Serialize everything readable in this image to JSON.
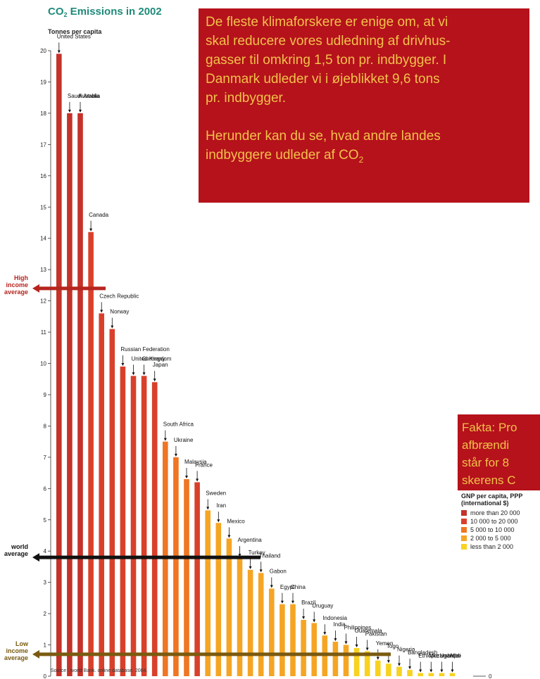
{
  "title": {
    "main": "CO",
    "sub": "2",
    "rest": " Emissions in 2002"
  },
  "ylabel": "Tonnes per capita",
  "source": "Source : world Bank. online database. 2004.",
  "info_box": {
    "lines": [
      "De fleste klimaforskere er enige om, at vi",
      "skal reducere vores udledning af drivhus-",
      "gasser til omkring 1,5 ton pr. indbygger. I",
      "Danmark udleder vi i øjeblikket 9,6 tons",
      "pr. indbygger."
    ],
    "line2_main": "Herunder kan du se, hvad andre landes",
    "line2_end": "indbyggere udleder af CO",
    "line2_sub": "2"
  },
  "fakta_box": {
    "lines": [
      "Fakta: Pro",
      "afbrændi",
      "står for 8",
      "skerens C"
    ]
  },
  "legend": {
    "title_lines": [
      "GNP per capita, PPP",
      "(international $)"
    ],
    "items": [
      {
        "label": "more than 20 000",
        "color": "#c43229"
      },
      {
        "label": "10 000 to 20 000",
        "color": "#d9402b"
      },
      {
        "label": "5 000 to 10 000",
        "color": "#ef7622"
      },
      {
        "label": "2 000 to 5 000",
        "color": "#f5a524"
      },
      {
        "label": "less than 2 000",
        "color": "#f8d21f"
      }
    ]
  },
  "chart_data": {
    "type": "bar",
    "title": "CO2 Emissions in 2002",
    "ylabel": "Tonnes per capita",
    "ylim": [
      0,
      20
    ],
    "yticks": [
      0,
      1,
      2,
      3,
      4,
      5,
      6,
      7,
      8,
      9,
      10,
      11,
      12,
      13,
      14,
      15,
      16,
      17,
      18,
      19,
      20
    ],
    "zero_label": "0",
    "categories": [
      "United States",
      "Saudi Arabia",
      "Australia",
      "Canada",
      "Czech Republic",
      "Norway",
      "Russian Federation",
      "United Kingdom",
      "Germany",
      "Japan",
      "South Africa",
      "Ukraine",
      "Malaysia",
      "France",
      "Sweden",
      "Iran",
      "Mexico",
      "Argentina",
      "Turkey",
      "Thailand",
      "Gabon",
      "Egypt",
      "China",
      "Brazil",
      "Uruguay",
      "Indonesia",
      "India",
      "Philippines",
      "Guatemala",
      "Pakistan",
      "Yemen",
      "Togo",
      "Nigeria",
      "Bangladesh",
      "Ethiopia",
      "Mozambique",
      "Uganda",
      "Mali"
    ],
    "unlabeled_bar_count": 40,
    "values": [
      19.9,
      18.0,
      18.0,
      14.2,
      11.6,
      11.1,
      9.9,
      9.6,
      9.6,
      9.4,
      7.5,
      7.0,
      6.3,
      6.2,
      5.3,
      4.9,
      4.4,
      3.8,
      3.4,
      3.3,
      2.8,
      2.3,
      2.3,
      1.8,
      1.7,
      1.3,
      1.1,
      1.0,
      0.9,
      0.8,
      0.5,
      0.4,
      0.3,
      0.2,
      0.1,
      0.1,
      0.1,
      0.1
    ],
    "references": [
      {
        "label_lines": [
          "High",
          "income",
          "average"
        ],
        "value": 12.4,
        "color": "#b5251e"
      },
      {
        "label_lines": [
          "world",
          "average"
        ],
        "value": 3.8,
        "color": "#111111"
      },
      {
        "label_lines": [
          "Low",
          "income",
          "average"
        ],
        "value": 0.7,
        "color": "#7a5a10"
      }
    ]
  }
}
